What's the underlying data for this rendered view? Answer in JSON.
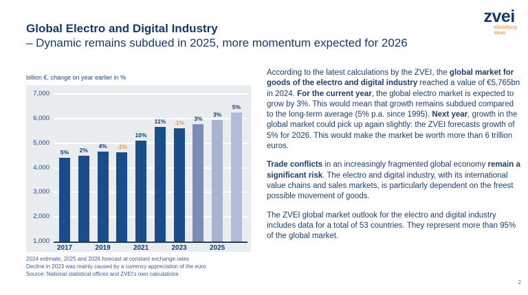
{
  "page": {
    "number": "2"
  },
  "header": {
    "title": "Global Electro and Digital Industry",
    "subtitle": "– Dynamic remains subdued in 2025, more momentum expected for 2026"
  },
  "logo": {
    "brand": "zvei",
    "tagline_line1": "electrifying",
    "tagline_line2": "ideas",
    "brand_color": "#17376e",
    "tagline_color": "#e8872a"
  },
  "chart": {
    "caption": "billion €, change on year earlier in %",
    "footnotes": [
      "2024 estimate, 2025 and 2026 forecast at constant exchange rates",
      "Decline in 2023 was mainly caused by a currency appreciation of the euro",
      "Source: National statistical offices and ZVEI's own calculations"
    ]
  },
  "chart_data": {
    "type": "bar",
    "title": "billion €, change on year earlier in %",
    "categories": [
      "2017",
      "2018",
      "2019",
      "2020",
      "2021",
      "2022",
      "2023",
      "2024",
      "2025",
      "2026"
    ],
    "values": [
      4400,
      4480,
      4660,
      4630,
      5100,
      5670,
      5600,
      5765,
      5940,
      6235
    ],
    "bar_labels": [
      "5%",
      "2%",
      "4%",
      "-1%",
      "10%",
      "11%",
      "-1%",
      "3%",
      "3%",
      "5%"
    ],
    "bar_colors": [
      "#1a4e8a",
      "#1a4e8a",
      "#1a4e8a",
      "#1a4e8a",
      "#1a4e8a",
      "#1a4e8a",
      "#1a4e8a",
      "#7e8db8",
      "#a9b3d1",
      "#b2bcd8"
    ],
    "label_color_default": "#17376e",
    "label_color_negative": "#dc9a2e",
    "x_axis_labeled_years": [
      "2017",
      "2019",
      "2021",
      "2023",
      "2025"
    ],
    "ylim": [
      1000,
      7000
    ],
    "ytick_step": 1000,
    "ytick_format": "thousands-comma",
    "grid": true,
    "legend": "none",
    "plot_background": "#e9edf0",
    "gridline_color": "#ffffff",
    "axis_color": "#1c3a5e"
  },
  "body": {
    "paragraphs": [
      [
        {
          "text": "According to the latest calculations by the ZVEI, the ",
          "bold": false
        },
        {
          "text": "global market for goods of the electro and digital industry",
          "bold": true
        },
        {
          "text": " reached a value of €5,765bn in 2024. ",
          "bold": false
        },
        {
          "text": "For the current year",
          "bold": true
        },
        {
          "text": ", the global electro market is expected to grow by 3%. This would mean that growth remains subdued compared to the long-term average (5% p.a. since 1995). ",
          "bold": false
        },
        {
          "text": "Next year",
          "bold": true
        },
        {
          "text": ", growth in the global market could pick up again slightly: the ZVEI forecasts growth of 5% for 2026. This would make the market be worth more than 6 trillion euros.",
          "bold": false
        }
      ],
      [
        {
          "text": "Trade conflicts",
          "bold": true
        },
        {
          "text": " in an increasingly fragmented global economy ",
          "bold": false
        },
        {
          "text": "remain a significant risk",
          "bold": true
        },
        {
          "text": ". The electro and digital industry, with its international value chains and sales markets, is particularly dependent on the freest possible movement of goods.",
          "bold": false
        }
      ],
      [
        {
          "text": "The ZVEI global market outlook for the electro and digital industry includes data for a total of 53 countries. They represent more than 95% of the global market.",
          "bold": false
        }
      ]
    ]
  }
}
